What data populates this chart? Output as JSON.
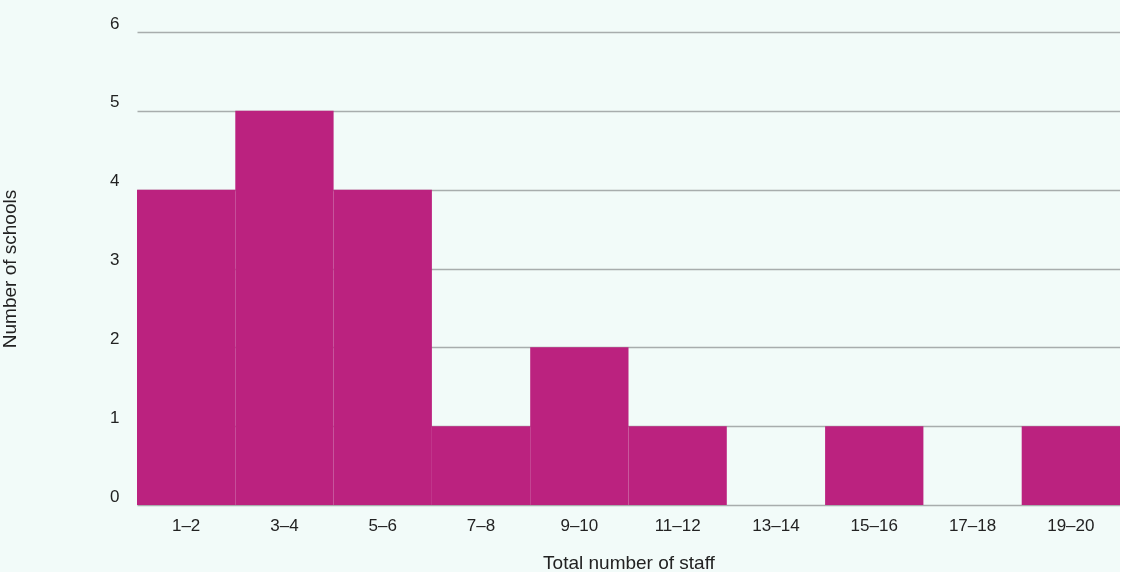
{
  "chart_data": {
    "type": "bar",
    "xlabel": "Total number of staff",
    "ylabel": "Number of schools",
    "categories": [
      "1–2",
      "3–4",
      "5–6",
      "7–8",
      "9–10",
      "11–12",
      "13–14",
      "15–16",
      "17–18",
      "19–20"
    ],
    "values": [
      4,
      5,
      4,
      1,
      2,
      1,
      0,
      1,
      0,
      1
    ],
    "color": "#bb227f",
    "ylim": [
      0,
      6
    ],
    "yticks": [
      0,
      1,
      2,
      3,
      4,
      5,
      6
    ],
    "grid": "y",
    "legend": false
  }
}
